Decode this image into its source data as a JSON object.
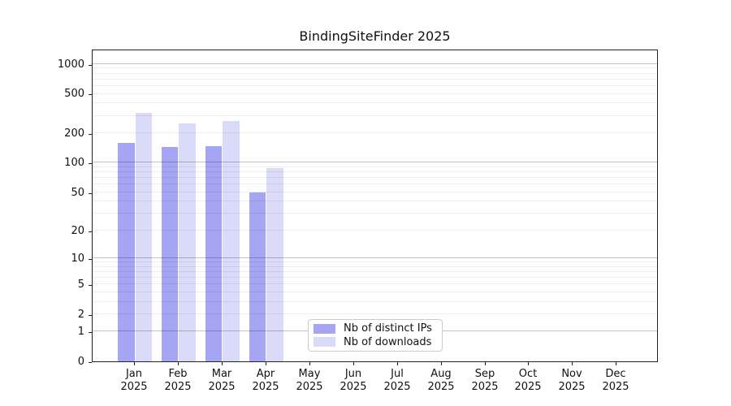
{
  "chart_data": {
    "type": "bar",
    "title": "BindingSiteFinder 2025",
    "categories": [
      "Jan 2025",
      "Feb 2025",
      "Mar 2025",
      "Apr 2025",
      "May 2025",
      "Jun 2025",
      "Jul 2025",
      "Aug 2025",
      "Sep 2025",
      "Oct 2025",
      "Nov 2025",
      "Dec 2025"
    ],
    "x_tick_months": [
      "Jan",
      "Feb",
      "Mar",
      "Apr",
      "May",
      "Jun",
      "Jul",
      "Aug",
      "Sep",
      "Oct",
      "Nov",
      "Dec"
    ],
    "x_tick_year": "2025",
    "series": [
      {
        "key": "distinct-ips",
        "name": "Nb of distinct IPs",
        "color": "#a5a5f3",
        "values": [
          160,
          145,
          148,
          50,
          0,
          0,
          0,
          0,
          0,
          0,
          0,
          0
        ]
      },
      {
        "key": "downloads",
        "name": "Nb of downloads",
        "color": "#dadaf9",
        "values": [
          320,
          252,
          265,
          89,
          0,
          0,
          0,
          0,
          0,
          0,
          0,
          0
        ]
      }
    ],
    "yscale": "log10(1+y)",
    "ylim": [
      0,
      1425
    ],
    "y_ticks": [
      0,
      1,
      2,
      5,
      10,
      20,
      50,
      100,
      200,
      500,
      1000
    ],
    "grid": "both",
    "grid_major_at": [
      1,
      10,
      100,
      1000
    ],
    "grid_minor_at": [
      2,
      3,
      4,
      5,
      6,
      7,
      8,
      9,
      20,
      30,
      40,
      50,
      60,
      70,
      80,
      90,
      200,
      300,
      400,
      500,
      600,
      700,
      800,
      900
    ],
    "legend_position": "lower center",
    "xlabel": "",
    "ylabel": ""
  }
}
